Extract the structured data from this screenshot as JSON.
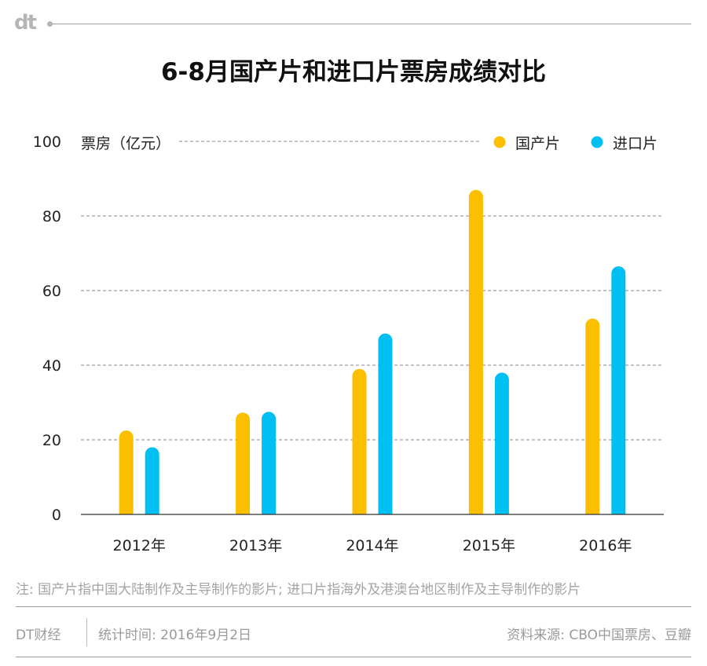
{
  "header": {
    "logo": "dt"
  },
  "chart_data": {
    "type": "bar",
    "title": "6-8月国产片和进口片票房成绩对比",
    "ylabel": "票房（亿元）",
    "xlabel": "",
    "categories": [
      "2012年",
      "2013年",
      "2014年",
      "2015年",
      "2016年"
    ],
    "series": [
      {
        "name": "国产片",
        "color": "#FBBF00",
        "values": [
          22.5,
          27.3,
          39.0,
          87.0,
          52.5
        ]
      },
      {
        "name": "进口片",
        "color": "#00BFF3",
        "values": [
          18.0,
          27.5,
          48.5,
          38.0,
          66.5
        ]
      }
    ],
    "ylim": [
      0,
      100
    ],
    "yticks": [
      "0",
      "20",
      "40",
      "60",
      "80",
      "100"
    ],
    "grid": true,
    "legend": "top-right"
  },
  "footer": {
    "note": "注: 国产片指中国大陆制作及主导制作的影片; 进口片指海外及港澳台地区制作及主导制作的影片",
    "brand": "DT财经",
    "date": "统计时间: 2016年9月2日",
    "source": "资料来源: CBO中国票房、豆瓣"
  }
}
